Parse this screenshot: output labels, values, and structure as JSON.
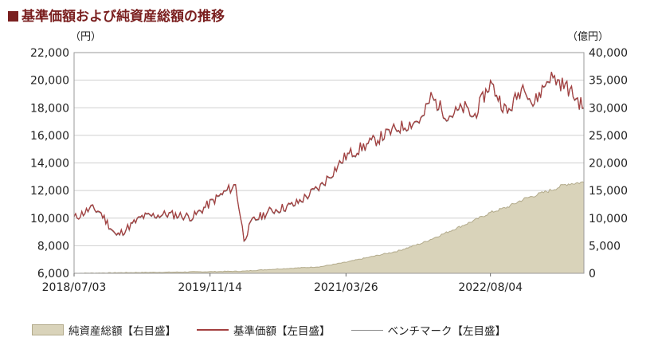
{
  "title": "基準価額および純資産総額の推移",
  "chart_data": {
    "type": "line",
    "y_left_unit": "（円）",
    "y_right_unit": "（億円）",
    "y_left_ticks": [
      "22,000",
      "20,000",
      "18,000",
      "16,000",
      "14,000",
      "12,000",
      "10,000",
      "8,000",
      "6,000"
    ],
    "y_right_ticks": [
      "40,000",
      "35,000",
      "30,000",
      "25,000",
      "20,000",
      "15,000",
      "10,000",
      "5,000",
      "0"
    ],
    "ylim_left": [
      6000,
      22000
    ],
    "ylim_right": [
      0,
      40000
    ],
    "x_ticks": [
      "2018/07/03",
      "2019/11/14",
      "2021/03/26",
      "2022/08/04"
    ],
    "series": [
      {
        "name": "純資産総額【右目盛】",
        "axis": "right",
        "kind": "area",
        "x": [
          "2018/07",
          "2018/12",
          "2019/06",
          "2019/11",
          "2020/03",
          "2020/06",
          "2020/12",
          "2021/03",
          "2021/06",
          "2021/09",
          "2021/12",
          "2022/03",
          "2022/06",
          "2022/08",
          "2022/10",
          "2022/12",
          "2023/03",
          "2023/05",
          "2023/07"
        ],
        "values": [
          0,
          100,
          200,
          300,
          400,
          700,
          1200,
          2000,
          3000,
          4000,
          5500,
          7500,
          9500,
          11000,
          12000,
          13500,
          15000,
          16200,
          16500
        ]
      },
      {
        "name": "基準価額【左目盛】",
        "axis": "left",
        "kind": "line",
        "x": [
          "2018/07",
          "2018/09",
          "2018/10",
          "2018/12",
          "2019/03",
          "2019/06",
          "2019/09",
          "2019/11",
          "2020/01",
          "2020/02",
          "2020/03",
          "2020/04",
          "2020/06",
          "2020/09",
          "2020/12",
          "2021/03",
          "2021/06",
          "2021/09",
          "2021/12",
          "2022/01",
          "2022/03",
          "2022/05",
          "2022/06",
          "2022/08",
          "2022/10",
          "2022/12",
          "2023/01",
          "2023/03",
          "2023/05",
          "2023/07"
        ],
        "values": [
          10000,
          10700,
          10500,
          8700,
          10100,
          10300,
          10100,
          11100,
          12000,
          12400,
          8500,
          9800,
          10500,
          11000,
          12300,
          14500,
          15500,
          16500,
          17200,
          18800,
          17400,
          18000,
          17300,
          19800,
          17600,
          19800,
          18200,
          20300,
          19500,
          18000
        ]
      },
      {
        "name": "ベンチマーク【左目盛】",
        "axis": "left",
        "kind": "line",
        "x": [
          "2018/07",
          "2018/09",
          "2018/10",
          "2018/12",
          "2019/03",
          "2019/06",
          "2019/09",
          "2019/11",
          "2020/01",
          "2020/02",
          "2020/03",
          "2020/04",
          "2020/06",
          "2020/09",
          "2020/12",
          "2021/03",
          "2021/06",
          "2021/09",
          "2021/12",
          "2022/01",
          "2022/03",
          "2022/05",
          "2022/06",
          "2022/08",
          "2022/10",
          "2022/12",
          "2023/01",
          "2023/03",
          "2023/05",
          "2023/07"
        ],
        "values": [
          10000,
          10650,
          10450,
          8650,
          10050,
          10250,
          10050,
          11050,
          11950,
          12350,
          8450,
          9750,
          10450,
          10950,
          12250,
          14450,
          15450,
          16450,
          17150,
          18750,
          17350,
          17950,
          17250,
          19750,
          17550,
          19750,
          18150,
          20250,
          19450,
          17950
        ]
      }
    ],
    "colors": {
      "area_fill": "#d9d3ba",
      "area_stroke": "#b3ab8c",
      "nav_line": "#a34040",
      "bench_line": "#888888",
      "grid": "#cfcfcf"
    }
  }
}
